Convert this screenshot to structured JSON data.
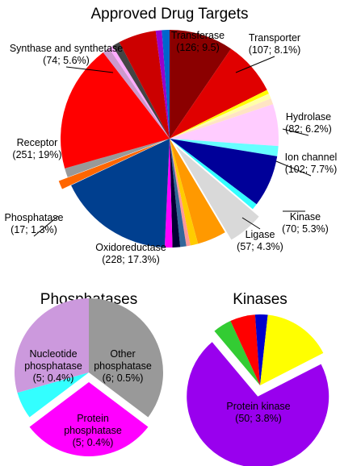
{
  "chart_data": [
    {
      "type": "pie",
      "title": "Approved Drug Targets",
      "categories": [
        "Transferase",
        "Transporter",
        null,
        null,
        null,
        "Hydrolase",
        null,
        "Ion channel",
        null,
        "Kinase",
        "Ligase",
        null,
        null,
        null,
        null,
        null,
        "Oxidoreductase",
        "Phosphatase",
        null,
        "Receptor",
        null,
        null,
        null,
        "Synthase and synthetase",
        null,
        null
      ],
      "values": [
        126,
        107,
        8,
        10,
        12,
        82,
        20,
        102,
        12,
        70,
        57,
        15,
        8,
        12,
        15,
        15,
        228,
        17,
        18,
        251,
        14,
        8,
        15,
        74,
        12,
        15
      ],
      "value_labels": [
        "(126; 9.5)",
        "(107; 8.1%)",
        null,
        null,
        null,
        "(82; 6.2%)",
        null,
        "(102; 7.7%)",
        null,
        "(70; 5.3%)",
        "(57; 4.3%)",
        null,
        null,
        null,
        null,
        null,
        "(228; 17.3%)",
        "(17; 1.3%)",
        null,
        "(251; 19%)",
        null,
        null,
        null,
        "(74; 5.6%)",
        null,
        null
      ],
      "colors": [
        "#8b0000",
        "#e00000",
        "#ffff00",
        "#ffffaa",
        "#ffe4c4",
        "#ffccff",
        "#66ffff",
        "#000099",
        "#33ffff",
        "#d9d9d9",
        "#ff9900",
        "#ffcc00",
        "#ff9999",
        "#336699",
        "#000033",
        "#ff00ff",
        "#003f8f",
        "#ff6600",
        "#999999",
        "#ff0000",
        "#cc99cc",
        "#ffaaff",
        "#444444",
        "#cc0000",
        "#9900cc",
        "#0066cc"
      ],
      "exploded": [
        false,
        false,
        false,
        false,
        false,
        false,
        false,
        false,
        false,
        true,
        false,
        false,
        false,
        false,
        false,
        false,
        false,
        true,
        false,
        false,
        false,
        false,
        false,
        false,
        false,
        false
      ]
    },
    {
      "type": "pie",
      "title": "Phosphatases",
      "categories": [
        "Other phosphatase",
        "Protein phosphatase",
        null,
        "Nucleotide phosphatase"
      ],
      "values": [
        6,
        5,
        1,
        5
      ],
      "value_labels": [
        "(6; 0.5%)",
        "(5; 0.4%)",
        null,
        "(5; 0.4%)"
      ],
      "colors": [
        "#999999",
        "#ff00ff",
        "#33ffff",
        "#cc99dd"
      ],
      "exploded": [
        false,
        true,
        false,
        false
      ]
    },
    {
      "type": "pie",
      "title": "Kinases",
      "categories": [
        null,
        null,
        null,
        null,
        "Protein kinase"
      ],
      "values": [
        3,
        4,
        2,
        11,
        50
      ],
      "value_labels": [
        null,
        null,
        null,
        null,
        "(50; 3.8%)"
      ],
      "colors": [
        "#33cc33",
        "#ff0000",
        "#0000cc",
        "#ffff00",
        "#9900ee"
      ],
      "exploded": [
        false,
        false,
        false,
        false,
        true
      ]
    }
  ]
}
